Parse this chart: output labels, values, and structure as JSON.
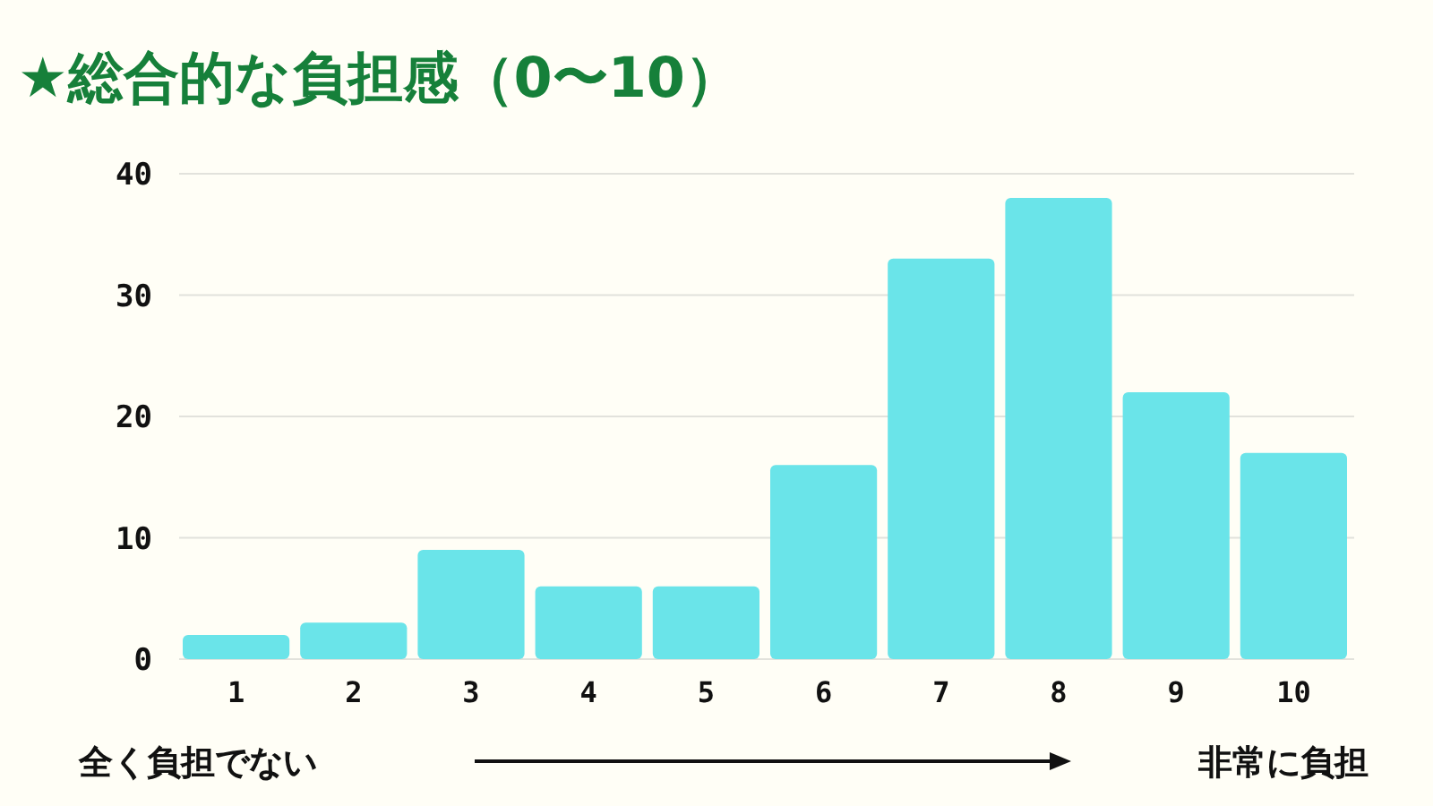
{
  "chart_data": {
    "type": "bar",
    "title": "★総合的な負担感（0〜10）",
    "categories": [
      "1",
      "2",
      "3",
      "4",
      "5",
      "6",
      "7",
      "8",
      "9",
      "10"
    ],
    "values": [
      2,
      3,
      9,
      6,
      6,
      16,
      33,
      38,
      22,
      17
    ],
    "color": "#6ae4e9",
    "ylim": [
      0,
      40
    ],
    "yticks": [
      0,
      10,
      20,
      30,
      40
    ],
    "grid": "y",
    "annotations": [
      "全く負担でない",
      "非常に負担"
    ]
  }
}
